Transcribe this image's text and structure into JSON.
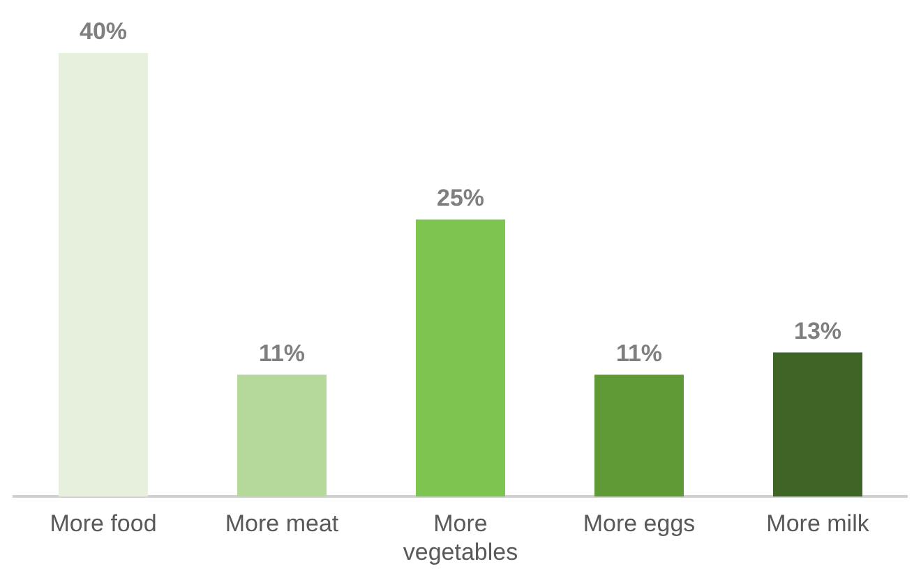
{
  "chart_data": {
    "type": "bar",
    "categories": [
      "More food",
      "More meat",
      "More vegetables",
      "More eggs",
      "More milk"
    ],
    "values": [
      40,
      11,
      25,
      11,
      13
    ],
    "colors": [
      "#e6f0dc",
      "#b5d99a",
      "#7dc450",
      "#5f9a36",
      "#3f6526"
    ],
    "value_labels": [
      "40%",
      "11%",
      "25%",
      "11%",
      "13%"
    ],
    "grid": false,
    "legend": false
  }
}
